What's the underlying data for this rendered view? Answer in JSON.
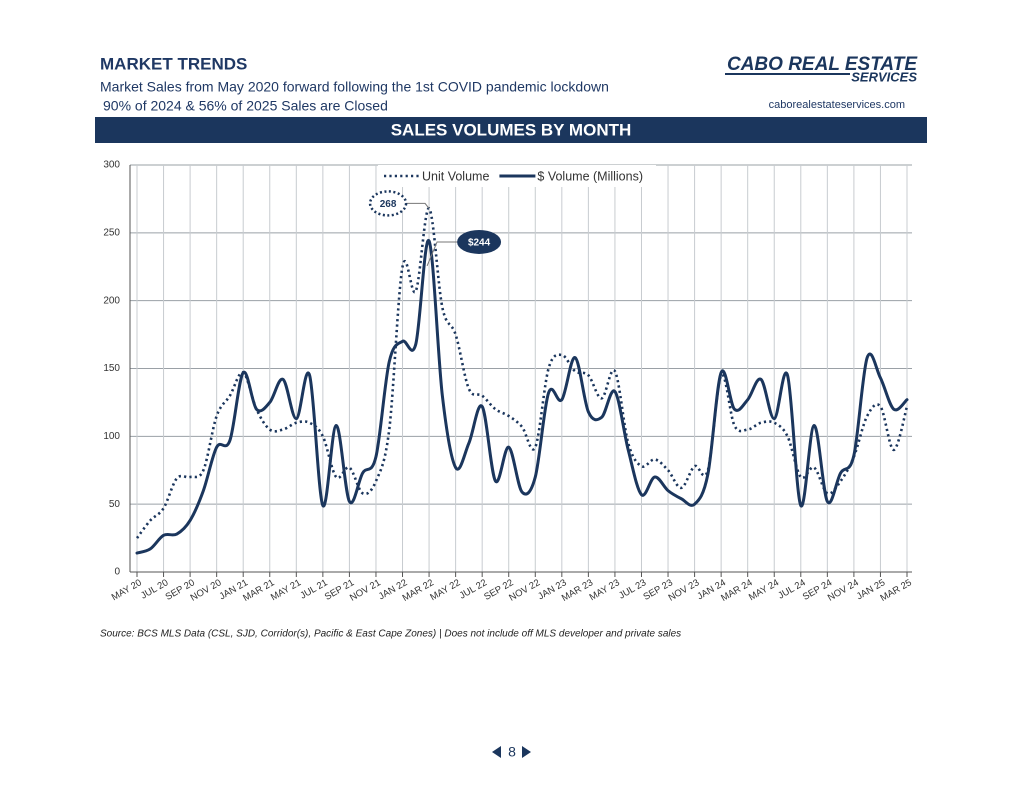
{
  "header": {
    "title": "MARKET TRENDS",
    "subtitle": [
      "Market Sales from May 2020 forward following the 1st COVID pandemic lockdown",
      "90% of 2024 & 56% of 2025 Sales are Closed"
    ],
    "logo": [
      "CABO REAL ESTATE",
      "SERVICES"
    ],
    "url": "caborealestateservices.com"
  },
  "chart_data": {
    "type": "line",
    "title": "SALES VOLUMES BY MONTH",
    "categories": [
      "MAY 20",
      null,
      "JUL 20",
      null,
      "SEP 20",
      null,
      "NOV 20",
      null,
      "JAN 21",
      null,
      "MAR 21",
      null,
      "MAY 21",
      null,
      "JUL 21",
      null,
      "SEP 21",
      null,
      "NOV 21",
      null,
      "JAN 22",
      null,
      "MAR 22",
      null,
      "MAY 22",
      null,
      "JUL 22",
      null,
      "SEP 22",
      null,
      "NOV 22",
      null,
      "JAN 23",
      null,
      "MAR 23",
      null,
      "MAY 23",
      null,
      "JUL 23",
      null,
      "SEP 23",
      null,
      "NOV 23",
      null,
      "JAN 24",
      null,
      "MAR 24",
      null,
      "MAY 24",
      null,
      "JUL 24",
      null,
      "SEP 24",
      null,
      "NOV 24",
      null,
      "JAN 25",
      null,
      "MAR 25"
    ],
    "series": [
      {
        "name": "Unit Volume",
        "color": "#1b365d",
        "style": "dotted",
        "values": [
          25,
          38,
          47,
          69,
          70,
          75,
          115,
          130,
          147,
          120,
          105,
          105,
          110,
          110,
          100,
          70,
          77,
          58,
          67,
          105,
          225,
          207,
          268,
          195,
          175,
          135,
          130,
          120,
          115,
          107,
          92,
          150,
          160,
          148,
          145,
          128,
          148,
          95,
          78,
          83,
          75,
          62,
          78,
          75,
          145,
          108,
          105,
          110,
          110,
          100,
          70,
          77,
          58,
          67,
          85,
          115,
          122,
          90,
          122
        ]
      },
      {
        "name": "$ Volume (Millions)",
        "color": "#1b365d",
        "style": "solid",
        "values": [
          14,
          17,
          27,
          28,
          38,
          60,
          92,
          97,
          147,
          120,
          125,
          142,
          113,
          145,
          49,
          108,
          52,
          73,
          85,
          155,
          170,
          168,
          244,
          130,
          77,
          95,
          122,
          67,
          92,
          59,
          70,
          132,
          127,
          158,
          118,
          114,
          133,
          90,
          57,
          70,
          60,
          54,
          50,
          72,
          147,
          120,
          127,
          142,
          113,
          145,
          49,
          108,
          52,
          73,
          86,
          158,
          143,
          120,
          127
        ]
      }
    ],
    "annotations": [
      "268",
      "$244"
    ],
    "ylim": [
      0,
      300
    ],
    "yticks": [
      0,
      50,
      100,
      150,
      200,
      250,
      300
    ],
    "grid": true,
    "legend": "top"
  },
  "footer": {
    "source": "Source:  BCS MLS Data (CSL, SJD, Corridor(s), Pacific & East Cape Zones) | Does not include off MLS developer and private sales",
    "page": "8"
  }
}
